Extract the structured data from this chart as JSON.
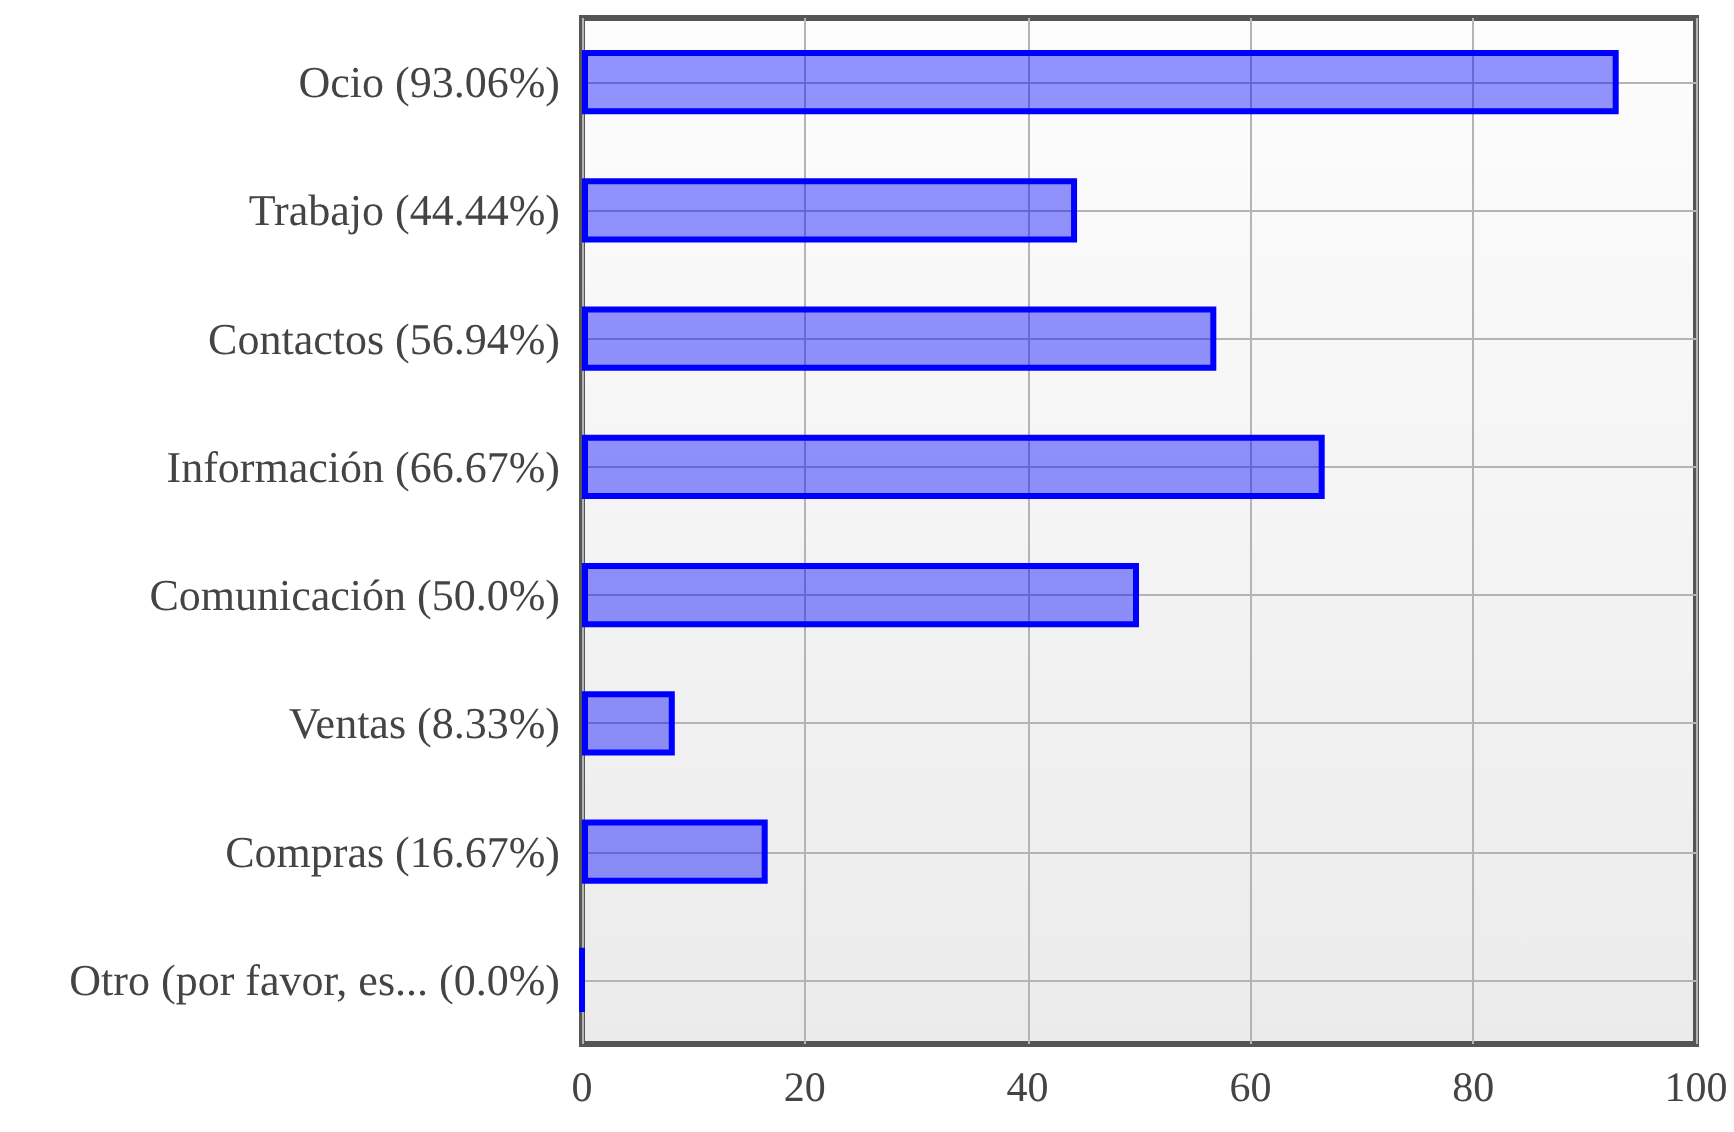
{
  "chart_data": {
    "type": "bar",
    "orientation": "horizontal",
    "categories": [
      "Ocio (93.06%)",
      "Trabajo (44.44%)",
      "Contactos (56.94%)",
      "Información (66.67%)",
      "Comunicación (50.0%)",
      "Ventas (8.33%)",
      "Compras (16.67%)",
      "Otro (por favor, es... (0.0%)"
    ],
    "values": [
      93.06,
      44.44,
      56.94,
      66.67,
      50.0,
      8.33,
      16.67,
      0.0
    ],
    "color": "#0000ff",
    "xlim": [
      0,
      100
    ],
    "xticks": [
      0,
      20,
      40,
      60,
      80,
      100
    ],
    "grid": true
  }
}
